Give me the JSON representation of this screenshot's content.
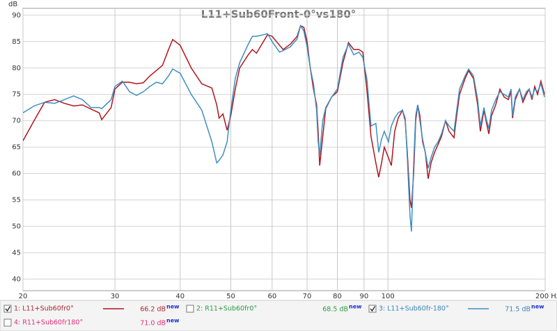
{
  "chart_data": {
    "type": "line",
    "title": "L11+Sub60Front-0°vs180°",
    "ylabel": "dB",
    "log_x": true,
    "grid": true,
    "xlim": [
      20,
      200
    ],
    "ylim": [
      37.8,
      91.3
    ],
    "xticks": [
      20,
      30,
      40,
      50,
      60,
      70,
      80,
      90,
      100,
      {
        "value": 200,
        "label": "200 Hz"
      }
    ],
    "yticks": [
      40,
      45,
      50,
      55,
      60,
      65,
      70,
      75,
      80,
      85,
      90
    ],
    "x": [
      20,
      21,
      22,
      23,
      24,
      25,
      26,
      27,
      28,
      28.3,
      29.5,
      30,
      31,
      32,
      33,
      34,
      35,
      36,
      37,
      38,
      38.7,
      40,
      42,
      44,
      46,
      47,
      47.5,
      48.3,
      49.2,
      50,
      51,
      52,
      54,
      55,
      56,
      58.8,
      60,
      62,
      63,
      65,
      67,
      68,
      69,
      70,
      71,
      72,
      73,
      73.5,
      74,
      75,
      76,
      78,
      80,
      82,
      84,
      86,
      88,
      89.5,
      91.1,
      92.8,
      94.8,
      96,
      97.2,
      98.4,
      100.2,
      101.5,
      103,
      104.6,
      106.6,
      107.9,
      108.9,
      110.2,
      110.9,
      112,
      113,
      114,
      115.1,
      116.5,
      117.9,
      119.4,
      120.9,
      122.8,
      124.7,
      126.6,
      128.9,
      130.9,
      133.8,
      135,
      137.1,
      140.5,
      142.7,
      145.8,
      148.5,
      150.3,
      152.7,
      154.1,
      156,
      157.9,
      160.8,
      163.8,
      166.9,
      170,
      172.1,
      173.2,
      175.3,
      178.6,
      181.3,
      184.1,
      186.4,
      188.7,
      191,
      193.4,
      196.3,
      199.4
    ],
    "series": [
      {
        "name": "1: L11+Sub60fr0°",
        "color": "#b0141c",
        "label_color": "#a8282e",
        "checked": true,
        "level": "66.2 dB",
        "level_note": "new",
        "values": [
          66.2,
          70,
          73.5,
          74,
          73.3,
          72.8,
          73,
          72.2,
          71.5,
          70.2,
          72.5,
          76,
          77.3,
          77.3,
          77,
          77.2,
          78.5,
          79.5,
          80.5,
          83.5,
          85.4,
          84.3,
          80,
          77,
          76.2,
          73,
          70.5,
          71.3,
          68.2,
          71,
          76,
          80,
          82.5,
          83.5,
          82.8,
          86.3,
          86,
          84.3,
          83.5,
          84.5,
          86,
          88,
          87.7,
          85,
          80,
          76,
          73,
          68,
          61.5,
          67,
          72.3,
          74.5,
          75.5,
          81,
          84.8,
          83.5,
          83.5,
          83,
          76,
          67,
          62,
          59.3,
          62,
          65,
          63,
          61.5,
          68,
          70.5,
          72,
          70,
          64,
          55,
          53.5,
          60,
          70,
          73,
          71,
          66,
          64,
          59,
          62,
          64,
          65.5,
          67,
          70,
          68,
          66.8,
          70,
          75,
          78,
          79.5,
          78,
          73,
          68,
          72,
          70,
          67.5,
          71,
          73,
          76,
          74.5,
          74,
          75.5,
          70.5,
          74,
          76,
          73.5,
          75,
          76,
          74,
          76.5,
          75,
          77.5,
          75
        ]
      },
      {
        "name": "3: L11+Sub60fr-180°",
        "color": "#3d8fc2",
        "label_color": "#3a86b8",
        "checked": true,
        "level": "71.5 dB",
        "level_note": "new",
        "values": [
          71.5,
          72.8,
          73.5,
          73.3,
          74,
          74.7,
          74,
          72.5,
          72.5,
          72.3,
          74,
          76.5,
          77.5,
          75.5,
          74.8,
          75.5,
          76.5,
          77.3,
          77,
          78.5,
          79.8,
          79,
          75,
          72,
          66,
          62,
          62.5,
          63.5,
          66,
          72,
          78,
          81,
          84.5,
          86,
          86,
          86.5,
          85,
          83,
          83.3,
          84,
          85.5,
          88,
          87,
          84,
          80,
          77,
          72,
          66,
          63.5,
          70,
          72.5,
          74.5,
          76,
          82,
          84.5,
          82.5,
          83,
          82,
          78,
          69,
          69.5,
          64,
          66.5,
          68,
          66,
          69,
          70.5,
          71.5,
          72,
          70.5,
          63,
          52,
          49,
          62,
          71,
          73,
          70,
          66.5,
          64,
          61,
          63,
          65,
          66,
          67.5,
          70,
          69,
          68,
          71,
          76,
          78.5,
          79.8,
          78.5,
          74,
          69,
          72.5,
          70.5,
          68.5,
          72,
          74,
          75.5,
          75,
          74.5,
          76,
          71,
          74.5,
          76,
          74,
          75.5,
          76,
          74.5,
          76,
          75.5,
          77,
          74.5
        ]
      }
    ],
    "hidden_series": [
      {
        "name": "2: R11+Sub60fr0°",
        "label_color": "#2f9a45",
        "checked": false,
        "level": "68.5 dB",
        "level_note": "new"
      },
      {
        "name": "4: R11+Sub60fr180°",
        "label_color": "#e0307a",
        "checked": false,
        "level": "71.0 dB",
        "level_note": "new"
      }
    ]
  }
}
